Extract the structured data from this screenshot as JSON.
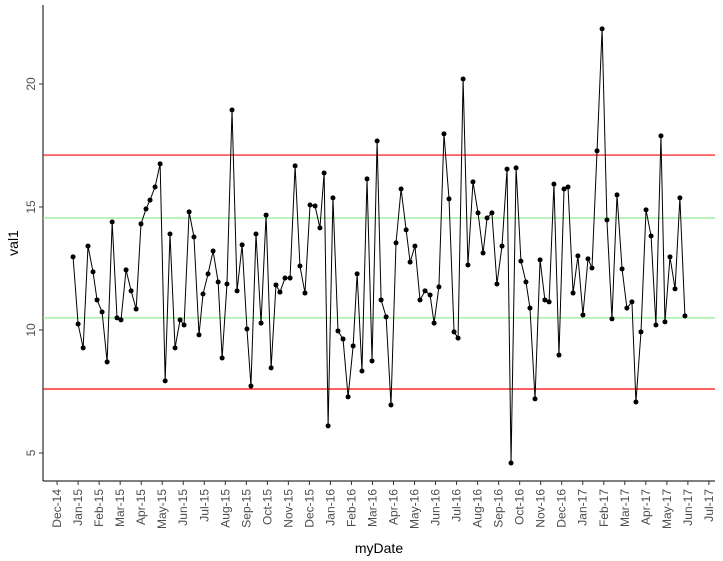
{
  "chart_data": {
    "type": "line",
    "x_label": "myDate",
    "y_label": "val1",
    "color": "#000000",
    "xlim": [
      -0.67,
      31.29
    ],
    "ylim": [
      3.86,
      23.21
    ],
    "yticks": [
      5,
      10,
      15,
      20
    ],
    "xticks": [
      {
        "value": 0,
        "label": "Dec-14"
      },
      {
        "value": 1,
        "label": "Jan-15"
      },
      {
        "value": 2,
        "label": "Feb-15"
      },
      {
        "value": 3,
        "label": "Mar-15"
      },
      {
        "value": 4,
        "label": "Apr-15"
      },
      {
        "value": 5,
        "label": "May-15"
      },
      {
        "value": 6,
        "label": "Jun-15"
      },
      {
        "value": 7,
        "label": "Jul-15"
      },
      {
        "value": 8,
        "label": "Aug-15"
      },
      {
        "value": 9,
        "label": "Sep-15"
      },
      {
        "value": 10,
        "label": "Oct-15"
      },
      {
        "value": 11,
        "label": "Nov-15"
      },
      {
        "value": 12,
        "label": "Dec-15"
      },
      {
        "value": 13,
        "label": "Jan-16"
      },
      {
        "value": 14,
        "label": "Feb-16"
      },
      {
        "value": 15,
        "label": "Mar-16"
      },
      {
        "value": 16,
        "label": "Apr-16"
      },
      {
        "value": 17,
        "label": "May-16"
      },
      {
        "value": 18,
        "label": "Jun-16"
      },
      {
        "value": 19,
        "label": "Jul-16"
      },
      {
        "value": 20,
        "label": "Aug-16"
      },
      {
        "value": 21,
        "label": "Sep-16"
      },
      {
        "value": 22,
        "label": "Oct-16"
      },
      {
        "value": 23,
        "label": "Nov-16"
      },
      {
        "value": 24,
        "label": "Dec-16"
      },
      {
        "value": 25,
        "label": "Jan-17"
      },
      {
        "value": 26,
        "label": "Feb-17"
      },
      {
        "value": 27,
        "label": "Mar-17"
      },
      {
        "value": 28,
        "label": "Apr-17"
      },
      {
        "value": 29,
        "label": "May-17"
      },
      {
        "value": 30,
        "label": "Jun-17"
      },
      {
        "value": 31,
        "label": "Jul-17"
      }
    ],
    "reference_lines": [
      {
        "value": 17.11,
        "color": "#ff0000"
      },
      {
        "value": 14.55,
        "color": "#90ee90"
      },
      {
        "value": 10.49,
        "color": "#90ee90"
      },
      {
        "value": 7.6,
        "color": "#ff0000"
      }
    ],
    "x": [
      0.76,
      1.0,
      1.24,
      1.47,
      1.71,
      1.9,
      2.14,
      2.38,
      2.62,
      2.85,
      3.04,
      3.28,
      3.52,
      3.76,
      3.99,
      4.23,
      4.42,
      4.66,
      4.9,
      5.14,
      5.37,
      5.61,
      5.85,
      6.04,
      6.28,
      6.51,
      6.75,
      6.94,
      7.18,
      7.42,
      7.66,
      7.85,
      8.08,
      8.32,
      8.56,
      8.8,
      9.03,
      9.22,
      9.46,
      9.7,
      9.94,
      10.18,
      10.41,
      10.6,
      10.84,
      11.08,
      11.32,
      11.55,
      11.79,
      12.03,
      12.27,
      12.5,
      12.7,
      12.89,
      13.12,
      13.36,
      13.6,
      13.84,
      14.08,
      14.27,
      14.5,
      14.74,
      14.98,
      15.22,
      15.41,
      15.65,
      15.88,
      16.12,
      16.36,
      16.6,
      16.79,
      17.02,
      17.26,
      17.5,
      17.74,
      17.93,
      18.16,
      18.4,
      18.64,
      18.88,
      19.07,
      19.31,
      19.54,
      19.78,
      20.02,
      20.26,
      20.45,
      20.68,
      20.92,
      21.16,
      21.4,
      21.59,
      21.83,
      22.06,
      22.3,
      22.49,
      22.73,
      22.97,
      23.2,
      23.4,
      23.63,
      23.87,
      24.11,
      24.3,
      24.54,
      24.77,
      25.01,
      25.25,
      25.44,
      25.68,
      25.92,
      26.15,
      26.39,
      26.63,
      26.87,
      27.1,
      27.34,
      27.53,
      27.77,
      28.01,
      28.25,
      28.48,
      28.72,
      28.91,
      29.15,
      29.39,
      29.62,
      29.86
    ],
    "values": [
      12.97,
      10.24,
      9.27,
      13.41,
      12.36,
      11.22,
      10.73,
      8.7,
      14.39,
      10.49,
      10.41,
      12.44,
      11.59,
      10.85,
      14.31,
      14.92,
      15.28,
      15.81,
      16.75,
      7.93,
      13.9,
      9.27,
      10.41,
      10.2,
      14.8,
      13.78,
      9.8,
      11.46,
      12.28,
      13.21,
      11.95,
      8.86,
      11.87,
      18.94,
      11.59,
      13.46,
      10.04,
      7.72,
      13.9,
      10.28,
      14.67,
      8.46,
      11.83,
      11.54,
      12.11,
      12.11,
      16.67,
      12.6,
      11.5,
      15.08,
      15.04,
      14.15,
      16.38,
      6.1,
      15.37,
      9.96,
      9.63,
      7.28,
      9.35,
      12.28,
      8.33,
      16.14,
      8.74,
      17.68,
      11.22,
      10.53,
      6.95,
      13.54,
      15.73,
      14.07,
      12.76,
      13.41,
      11.22,
      11.59,
      11.42,
      10.28,
      11.75,
      17.97,
      15.33,
      9.92,
      9.67,
      20.2,
      12.64,
      16.02,
      14.76,
      13.13,
      14.55,
      14.76,
      11.87,
      13.41,
      16.54,
      4.59,
      16.59,
      12.8,
      11.95,
      10.89,
      7.2,
      12.85,
      11.22,
      11.14,
      15.93,
      8.98,
      15.73,
      15.81,
      11.5,
      13.01,
      10.61,
      12.89,
      12.52,
      17.28,
      22.24,
      14.47,
      10.45,
      15.49,
      12.48,
      10.89,
      11.14,
      7.07,
      9.92,
      14.88,
      13.82,
      10.2,
      17.89,
      10.33,
      12.97,
      11.67,
      15.37,
      10.57
    ]
  }
}
